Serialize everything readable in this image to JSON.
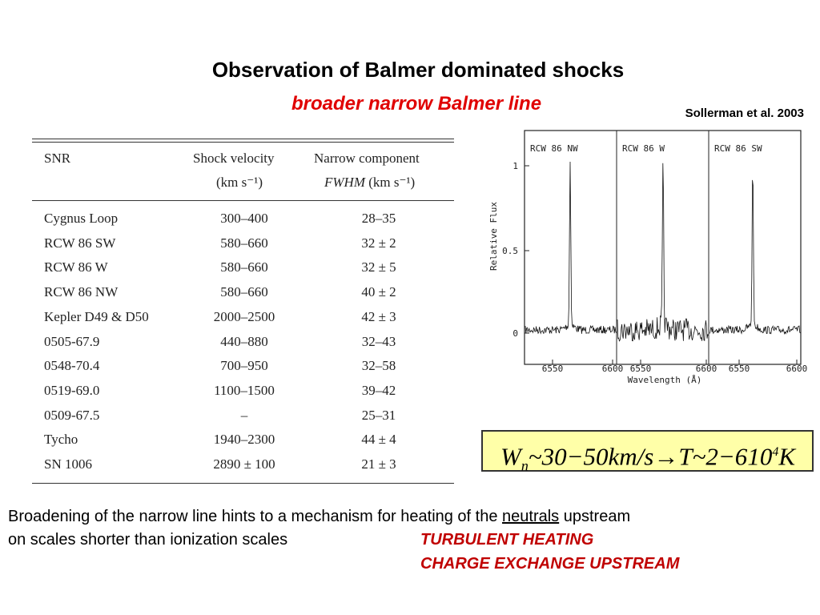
{
  "title": "Observation of Balmer dominated shocks",
  "subtitle": "broader narrow Balmer line",
  "citation": "Sollerman et al. 2003",
  "table": {
    "header_top": [
      "SNR",
      "Shock velocity",
      "Narrow component"
    ],
    "header_units": {
      "velocity": "(km s⁻¹)",
      "fwhm_italic": "FWHM",
      "fwhm_units": "(km s⁻¹)"
    },
    "rows": [
      [
        "Cygnus Loop",
        "300–400",
        "28–35"
      ],
      [
        "RCW 86 SW",
        "580–660",
        "32 ± 2"
      ],
      [
        "RCW 86 W",
        "580–660",
        "32 ± 5"
      ],
      [
        "RCW 86 NW",
        "580–660",
        "40 ± 2"
      ],
      [
        "Kepler D49 & D50",
        "2000–2500",
        "42 ± 3"
      ],
      [
        "0505-67.9",
        "440–880",
        "32–43"
      ],
      [
        "0548-70.4",
        "700–950",
        "32–58"
      ],
      [
        "0519-69.0",
        "1100–1500",
        "39–42"
      ],
      [
        "0509-67.5",
        "–",
        "25–31"
      ],
      [
        "Tycho",
        "1940–2300",
        "44 ± 4"
      ],
      [
        "SN 1006",
        "2890 ± 100",
        "21 ± 3"
      ]
    ]
  },
  "figure": {
    "panels": [
      "RCW 86 NW",
      "RCW 86 W",
      "RCW 86 SW"
    ],
    "y_label": "Relative Flux",
    "y_ticks": [
      "1",
      "0.5",
      "0"
    ],
    "x_ticks": [
      "6550",
      "6600",
      "6550",
      "6600",
      "6550",
      "6600"
    ],
    "x_label": "Wavelength (Å)"
  },
  "formula": {
    "w": "W",
    "sub": "n",
    "a": "~30−50",
    "unit": "km/s",
    "arrow": "→T",
    "b": "~2−6",
    "c": "10",
    "sup": "4",
    "k": "K"
  },
  "body": {
    "line1_a": "Broadening of the narrow line hints to a mechanism for heating of the ",
    "line1_u": "neutrals",
    "line1_b": " upstream",
    "line2": "on scales shorter than ionization scales",
    "red1": "TURBULENT HEATING",
    "red2": "CHARGE EXCHANGE UPSTREAM"
  }
}
